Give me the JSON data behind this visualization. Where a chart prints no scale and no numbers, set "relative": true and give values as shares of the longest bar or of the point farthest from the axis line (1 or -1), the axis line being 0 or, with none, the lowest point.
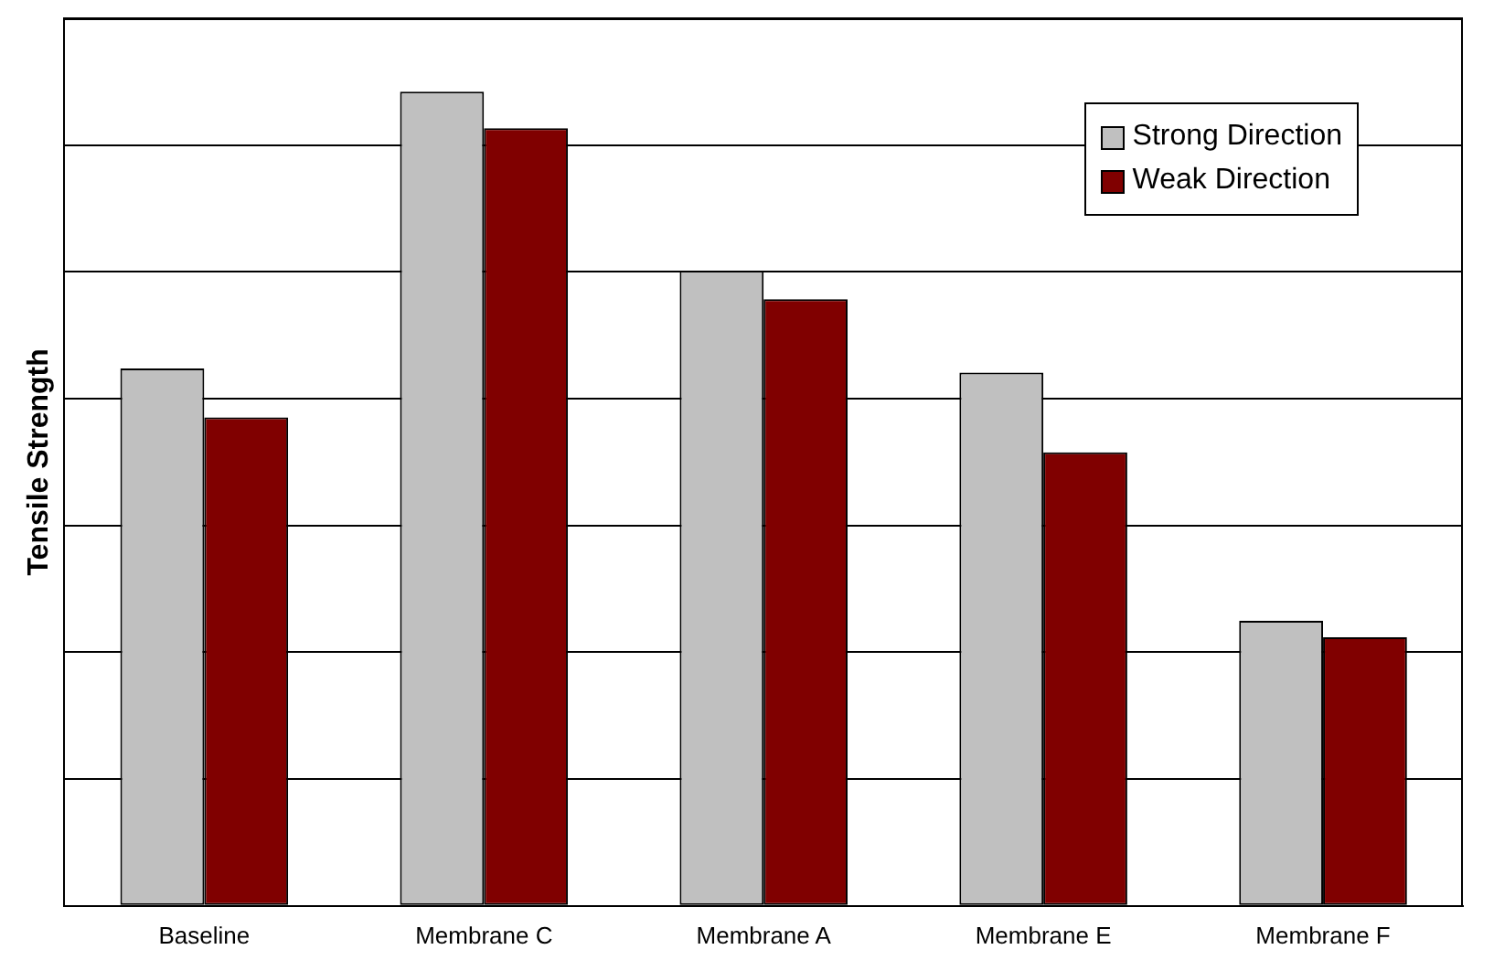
{
  "chart_data": {
    "type": "bar",
    "ylabel": "Tensile Strength",
    "relative": true,
    "grid": "y",
    "legend": "top right",
    "categories": [
      "Baseline",
      "Membrane C",
      "Membrane A",
      "Membrane E",
      "Membrane F"
    ],
    "series": [
      {
        "name": "Strong Direction",
        "color": "#c0c0c0",
        "values": [
          0.66,
          1,
          0.78,
          0.655,
          0.35
        ]
      },
      {
        "name": "Weak Direction",
        "color": "#800000",
        "values": [
          0.6,
          0.955,
          0.745,
          0.557,
          0.33
        ]
      }
    ]
  }
}
